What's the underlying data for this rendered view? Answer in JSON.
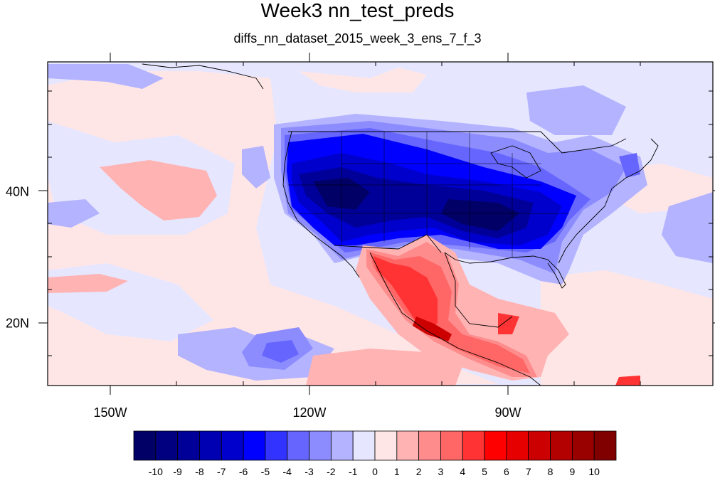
{
  "title": "Week3 nn_test_preds",
  "subtitle": "diffs_nn_dataset_2015_week_3_ens_7_f_3",
  "x_tick_labels": [
    "150W",
    "120W",
    "90W"
  ],
  "y_tick_labels": [
    "40N",
    "20N"
  ],
  "colorbar": {
    "labels": [
      "-10",
      "-9",
      "-8",
      "-7",
      "-6",
      "-5",
      "-4",
      "-3",
      "-2",
      "-1",
      "0",
      "1",
      "2",
      "3",
      "4",
      "5",
      "6",
      "7",
      "8",
      "9",
      "10"
    ],
    "colors": [
      "#000066",
      "#000080",
      "#000099",
      "#0000b3",
      "#0000cc",
      "#0000ff",
      "#3333ff",
      "#6666ff",
      "#8c8cff",
      "#b3b3ff",
      "#e6e6ff",
      "#ffe6e6",
      "#ffb3b3",
      "#ff8c8c",
      "#ff6666",
      "#ff3333",
      "#ff0000",
      "#e60000",
      "#cc0000",
      "#b30000",
      "#990000",
      "#800000"
    ]
  },
  "map": {
    "projection": "cylindrical equidistant",
    "lon_range": [
      -159.5,
      -60.5
    ],
    "lat_range": [
      10.5,
      59.5
    ],
    "field": "diffs",
    "ocean_color": "#e6e6ff"
  }
}
